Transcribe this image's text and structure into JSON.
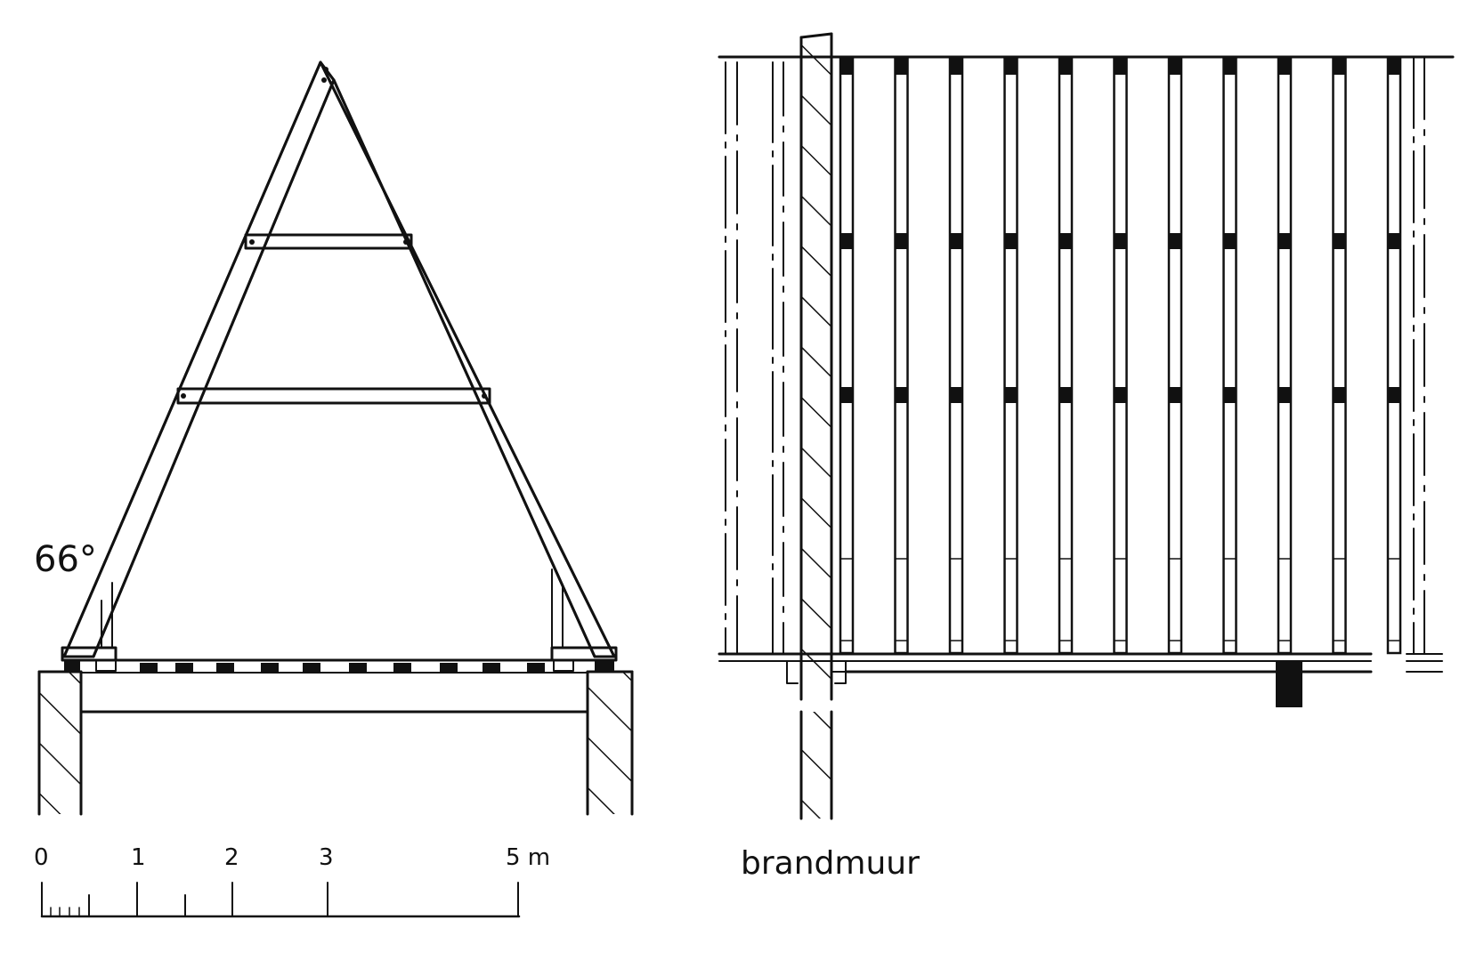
{
  "section": {
    "angle_label": "66°"
  },
  "scale_bar": {
    "ticks": [
      "0",
      "1",
      "2",
      "3",
      "5 m"
    ]
  },
  "plan": {
    "wall_label": "brandmuur",
    "rafter_count": 11
  },
  "colors": {
    "ink": "#111111",
    "background": "#ffffff"
  }
}
